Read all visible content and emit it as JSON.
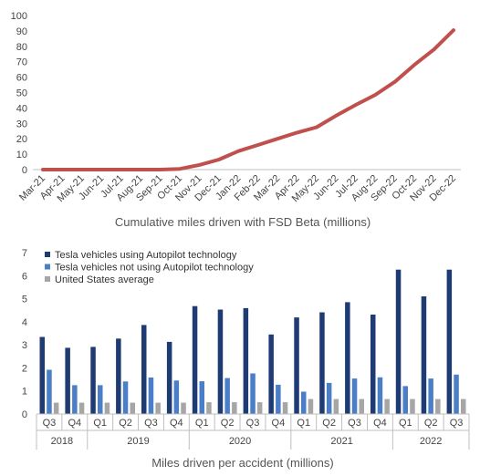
{
  "chart_data": [
    {
      "type": "line",
      "title": "Cumulative miles driven with FSD Beta (millions)",
      "x": [
        "Mar-21",
        "Apr-21",
        "May-21",
        "Jun-21",
        "Jul-21",
        "Aug-21",
        "Sep-21",
        "Oct-21",
        "Nov-21",
        "Dec-21",
        "Jan-22",
        "Feb-22",
        "Mar-22",
        "Apr-22",
        "May-22",
        "Jun-22",
        "Jul-22",
        "Aug-22",
        "Sep-22",
        "Oct-22",
        "Nov-22",
        "Dec-22"
      ],
      "series": [
        {
          "values": [
            0,
            0,
            0,
            0,
            0,
            0,
            0,
            0.5,
            3,
            6.5,
            12,
            16,
            20,
            24,
            27.5,
            35,
            42,
            48.5,
            57,
            68,
            78,
            90.5
          ],
          "color": "#c0504d"
        }
      ],
      "ylim": [
        0,
        100
      ],
      "yticks": [
        0,
        10,
        20,
        30,
        40,
        50,
        60,
        70,
        80,
        90,
        100
      ],
      "grid": false
    },
    {
      "type": "bar",
      "title": "Miles driven per accident (millions)",
      "quarters": [
        "Q3",
        "Q4",
        "Q1",
        "Q2",
        "Q3",
        "Q4",
        "Q1",
        "Q2",
        "Q3",
        "Q4",
        "Q1",
        "Q2",
        "Q3",
        "Q4",
        "Q1",
        "Q2",
        "Q3"
      ],
      "years": [
        {
          "label": "2018",
          "span": 2
        },
        {
          "label": "2019",
          "span": 4
        },
        {
          "label": "2020",
          "span": 4
        },
        {
          "label": "2021",
          "span": 4
        },
        {
          "label": "2022",
          "span": 3
        }
      ],
      "series": [
        {
          "name": "Tesla vehicles using Autopilot technology",
          "color": "#1f3b73",
          "values": [
            3.34,
            2.87,
            2.91,
            3.27,
            3.86,
            3.13,
            4.68,
            4.53,
            4.59,
            3.45,
            4.19,
            4.41,
            4.85,
            4.31,
            6.26,
            5.1,
            6.26
          ]
        },
        {
          "name": "Tesla vehicles not using Autopilot technology",
          "color": "#4a7ec7",
          "values": [
            1.92,
            1.25,
            1.25,
            1.41,
            1.58,
            1.45,
            1.42,
            1.56,
            1.76,
            1.27,
            0.97,
            1.35,
            1.54,
            1.59,
            1.21,
            1.54,
            1.71
          ]
        },
        {
          "name": "United States average",
          "color": "#a6a6a6",
          "values": [
            0.49,
            0.49,
            0.49,
            0.49,
            0.49,
            0.49,
            0.51,
            0.51,
            0.51,
            0.51,
            0.65,
            0.65,
            0.65,
            0.65,
            0.65,
            0.65,
            0.65
          ]
        }
      ],
      "ylim": [
        0,
        7
      ],
      "yticks": [
        0,
        1,
        2,
        3,
        4,
        5,
        6,
        7
      ],
      "legend": "top-left"
    }
  ]
}
